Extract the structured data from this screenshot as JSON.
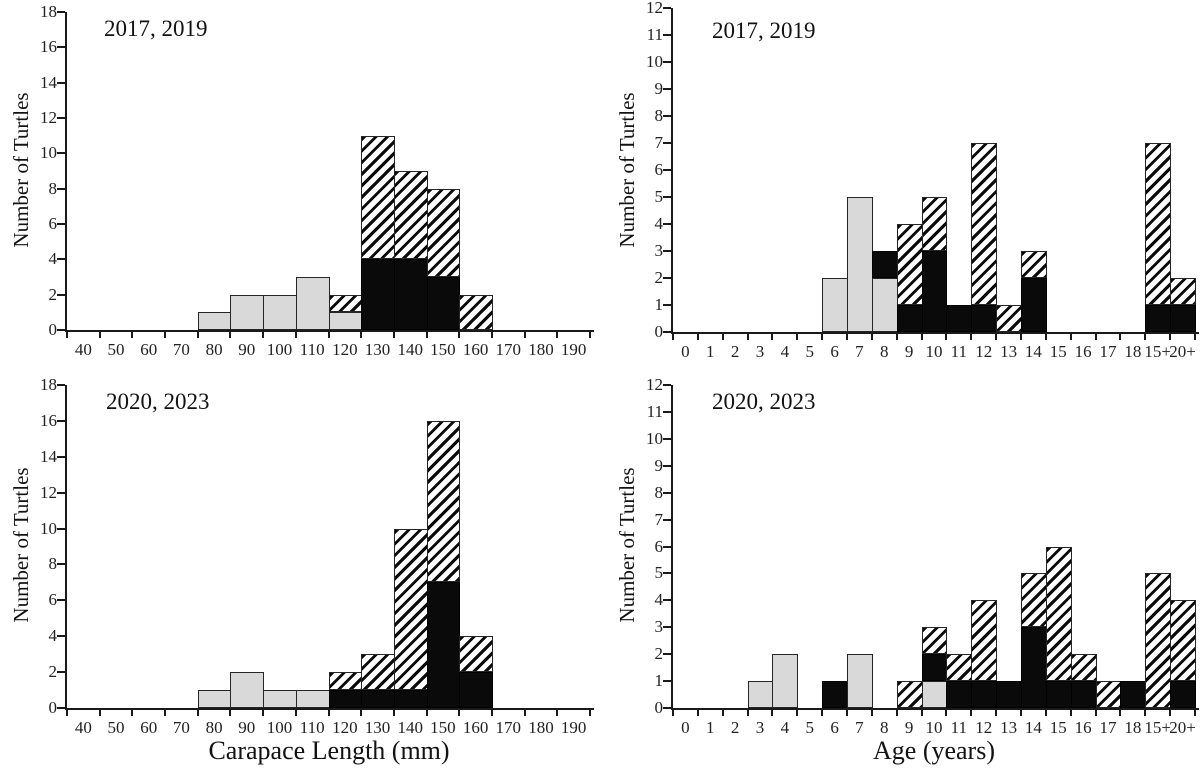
{
  "colors": {
    "bar_fill_gray": "#d9d9d9",
    "bar_fill_black": "#0a0a0a",
    "bar_hatch_line": "#0a0a0a",
    "bar_hatch_background": "#ffffff",
    "axis": "#1a1a1a"
  },
  "chart_data": [
    {
      "id": "carapace-2017-2019",
      "type": "bar",
      "stacked": true,
      "title": "2017, 2019",
      "xlabel": "",
      "ylabel": "Number of Turtles",
      "ylim": [
        0,
        18
      ],
      "ytick_step": 2,
      "yticks": [
        0,
        2,
        4,
        6,
        8,
        10,
        12,
        14,
        16,
        18
      ],
      "grid": false,
      "legend": "none",
      "categories": [
        "40",
        "50",
        "60",
        "70",
        "80",
        "90",
        "100",
        "110",
        "120",
        "130",
        "140",
        "150",
        "160",
        "170",
        "180",
        "190"
      ],
      "series": [
        {
          "name": "light-gray",
          "values": [
            0,
            0,
            0,
            0,
            1,
            2,
            2,
            3,
            1,
            0,
            0,
            0,
            0,
            0,
            0,
            0
          ]
        },
        {
          "name": "solid-black",
          "values": [
            0,
            0,
            0,
            0,
            0,
            0,
            0,
            0,
            0,
            4,
            4,
            3,
            0,
            0,
            0,
            0
          ]
        },
        {
          "name": "diagonal-hatch",
          "values": [
            0,
            0,
            0,
            0,
            0,
            0,
            0,
            0,
            1,
            7,
            5,
            5,
            2,
            0,
            0,
            0
          ]
        }
      ]
    },
    {
      "id": "age-2017-2019",
      "type": "bar",
      "stacked": true,
      "title": "2017, 2019",
      "xlabel": "",
      "ylabel": "Number of Turtles",
      "ylim": [
        0,
        12
      ],
      "ytick_step": 1,
      "yticks": [
        0,
        1,
        2,
        3,
        4,
        5,
        6,
        7,
        8,
        9,
        10,
        11,
        12
      ],
      "grid": false,
      "legend": "none",
      "categories": [
        "0",
        "1",
        "2",
        "3",
        "4",
        "5",
        "6",
        "7",
        "8",
        "9",
        "10",
        "11",
        "12",
        "13",
        "14",
        "15",
        "16",
        "17",
        "18",
        "15+",
        "20+"
      ],
      "series": [
        {
          "name": "light-gray",
          "values": [
            0,
            0,
            0,
            0,
            0,
            0,
            2,
            5,
            2,
            0,
            0,
            0,
            0,
            0,
            0,
            0,
            0,
            0,
            0,
            0,
            0
          ]
        },
        {
          "name": "solid-black",
          "values": [
            0,
            0,
            0,
            0,
            0,
            0,
            0,
            0,
            1,
            1,
            3,
            1,
            1,
            0,
            2,
            0,
            0,
            0,
            0,
            1,
            1
          ]
        },
        {
          "name": "diagonal-hatch",
          "values": [
            0,
            0,
            0,
            0,
            0,
            0,
            0,
            0,
            0,
            3,
            2,
            0,
            6,
            1,
            1,
            0,
            0,
            0,
            0,
            6,
            1
          ]
        }
      ]
    },
    {
      "id": "carapace-2020-2023",
      "type": "bar",
      "stacked": true,
      "title": "2020, 2023",
      "xlabel": "Carapace Length (mm)",
      "ylabel": "Number of Turtles",
      "ylim": [
        0,
        18
      ],
      "ytick_step": 2,
      "yticks": [
        0,
        2,
        4,
        6,
        8,
        10,
        12,
        14,
        16,
        18
      ],
      "grid": false,
      "legend": "none",
      "categories": [
        "40",
        "50",
        "60",
        "70",
        "80",
        "90",
        "100",
        "110",
        "120",
        "130",
        "140",
        "150",
        "160",
        "170",
        "180",
        "190"
      ],
      "series": [
        {
          "name": "light-gray",
          "values": [
            0,
            0,
            0,
            0,
            1,
            2,
            1,
            1,
            0,
            0,
            0,
            0,
            0,
            0,
            0,
            0
          ]
        },
        {
          "name": "solid-black",
          "values": [
            0,
            0,
            0,
            0,
            0,
            0,
            0,
            0,
            1,
            1,
            1,
            7,
            2,
            0,
            0,
            0
          ]
        },
        {
          "name": "diagonal-hatch",
          "values": [
            0,
            0,
            0,
            0,
            0,
            0,
            0,
            0,
            1,
            2,
            9,
            9,
            2,
            0,
            0,
            0
          ]
        }
      ]
    },
    {
      "id": "age-2020-2023",
      "type": "bar",
      "stacked": true,
      "title": "2020, 2023",
      "xlabel": "Age (years)",
      "ylabel": "Number of Turtles",
      "ylim": [
        0,
        12
      ],
      "ytick_step": 1,
      "yticks": [
        0,
        1,
        2,
        3,
        4,
        5,
        6,
        7,
        8,
        9,
        10,
        11,
        12
      ],
      "grid": false,
      "legend": "none",
      "categories": [
        "0",
        "1",
        "2",
        "3",
        "4",
        "5",
        "6",
        "7",
        "8",
        "9",
        "10",
        "11",
        "12",
        "13",
        "14",
        "15",
        "16",
        "17",
        "18",
        "15+",
        "20+"
      ],
      "series": [
        {
          "name": "light-gray",
          "values": [
            0,
            0,
            0,
            1,
            2,
            0,
            0,
            2,
            0,
            0,
            1,
            0,
            0,
            0,
            0,
            0,
            0,
            0,
            0,
            0,
            0
          ]
        },
        {
          "name": "solid-black",
          "values": [
            0,
            0,
            0,
            0,
            0,
            0,
            1,
            0,
            0,
            0,
            1,
            1,
            1,
            1,
            3,
            1,
            1,
            0,
            1,
            0,
            1
          ]
        },
        {
          "name": "diagonal-hatch",
          "values": [
            0,
            0,
            0,
            0,
            0,
            0,
            0,
            0,
            0,
            1,
            1,
            1,
            3,
            0,
            2,
            5,
            1,
            1,
            0,
            5,
            3
          ]
        }
      ]
    }
  ]
}
